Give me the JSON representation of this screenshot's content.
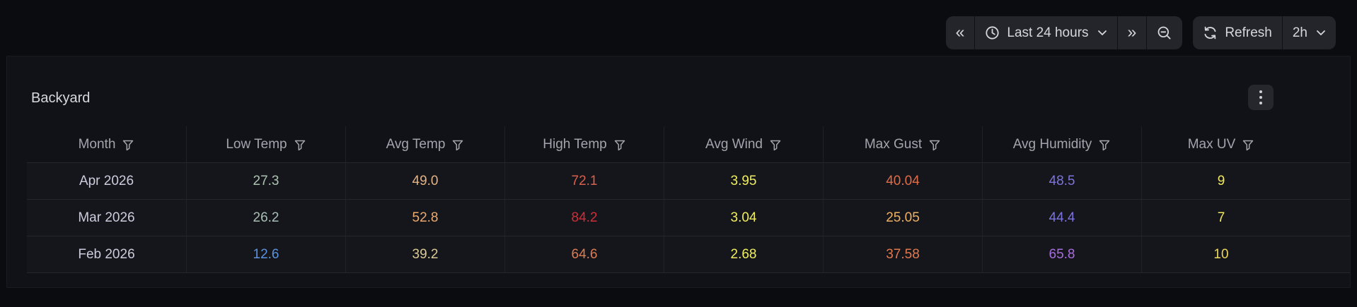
{
  "toolbar": {
    "time_back_icon": "«",
    "time_forward_icon": "»",
    "time_picker": {
      "label": "Last 24 hours"
    },
    "refresh": {
      "label": "Refresh",
      "interval": "2h"
    }
  },
  "panel": {
    "title": "Backyard",
    "table": {
      "columns": [
        {
          "label": "Month"
        },
        {
          "label": "Low Temp"
        },
        {
          "label": "Avg Temp"
        },
        {
          "label": "High Temp"
        },
        {
          "label": "Avg Wind"
        },
        {
          "label": "Max Gust"
        },
        {
          "label": "Avg Humidity"
        },
        {
          "label": "Max UV"
        }
      ],
      "rows": [
        {
          "cells": [
            {
              "text": "Apr 2026",
              "color": "#ccccdc"
            },
            {
              "text": "27.3",
              "color": "#adc2b1"
            },
            {
              "text": "49.0",
              "color": "#e5b282"
            },
            {
              "text": "72.1",
              "color": "#d8604c"
            },
            {
              "text": "3.95",
              "color": "#f0ee5f"
            },
            {
              "text": "40.04",
              "color": "#de6c48"
            },
            {
              "text": "48.5",
              "color": "#7d73dd"
            },
            {
              "text": "9",
              "color": "#efe75e"
            }
          ]
        },
        {
          "cells": [
            {
              "text": "Mar 2026",
              "color": "#ccccdc"
            },
            {
              "text": "26.2",
              "color": "#a9beb4"
            },
            {
              "text": "52.8",
              "color": "#edaa6e"
            },
            {
              "text": "84.2",
              "color": "#cf2e38"
            },
            {
              "text": "3.04",
              "color": "#f0ee5f"
            },
            {
              "text": "25.05",
              "color": "#eeb163"
            },
            {
              "text": "44.4",
              "color": "#7d73dd"
            },
            {
              "text": "7",
              "color": "#efe75e"
            }
          ]
        },
        {
          "cells": [
            {
              "text": "Feb 2026",
              "color": "#ccccdc"
            },
            {
              "text": "12.6",
              "color": "#5b91de"
            },
            {
              "text": "39.2",
              "color": "#dbc994"
            },
            {
              "text": "64.6",
              "color": "#dc7c54"
            },
            {
              "text": "2.68",
              "color": "#f0ee5f"
            },
            {
              "text": "37.58",
              "color": "#e2794e"
            },
            {
              "text": "65.8",
              "color": "#a76de0"
            },
            {
              "text": "10",
              "color": "#ecd75c"
            }
          ]
        }
      ]
    }
  },
  "colors": {
    "page_bg": "#0b0c0f",
    "panel_bg": "#111217",
    "button_bg": "#23252b",
    "header_text": "#a2a5ad",
    "primary_text": "#ccccdc"
  }
}
